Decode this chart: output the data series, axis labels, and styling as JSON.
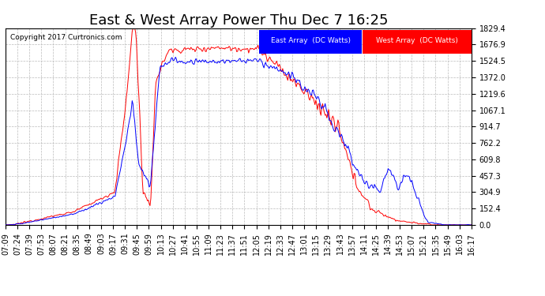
{
  "title": "East & West Array Power Thu Dec 7 16:25",
  "copyright": "Copyright 2017 Curtronics.com",
  "legend_east": "East Array  (DC Watts)",
  "legend_west": "West Array  (DC Watts)",
  "east_color": "#0000ff",
  "west_color": "#ff0000",
  "ytick_labels": [
    "0.0",
    "152.4",
    "304.9",
    "457.3",
    "609.8",
    "762.2",
    "914.7",
    "1067.1",
    "1219.6",
    "1372.0",
    "1524.5",
    "1676.9",
    "1829.4"
  ],
  "ytick_values": [
    0.0,
    152.4,
    304.9,
    457.3,
    609.8,
    762.2,
    914.7,
    1067.1,
    1219.6,
    1372.0,
    1524.5,
    1676.9,
    1829.4
  ],
  "ymax": 1829.4,
  "ymin": 0.0,
  "background_color": "#ffffff",
  "plot_bg_color": "#ffffff",
  "grid_color": "#bbbbbb",
  "title_fontsize": 13,
  "tick_fontsize": 7,
  "x_labels": [
    "07:09",
    "07:24",
    "07:39",
    "07:53",
    "08:07",
    "08:21",
    "08:35",
    "08:49",
    "09:03",
    "09:17",
    "09:31",
    "09:45",
    "09:59",
    "10:13",
    "10:27",
    "10:41",
    "10:55",
    "11:09",
    "11:23",
    "11:37",
    "11:51",
    "12:05",
    "12:19",
    "12:33",
    "12:47",
    "13:01",
    "13:15",
    "13:29",
    "13:43",
    "13:57",
    "14:11",
    "14:25",
    "14:39",
    "14:53",
    "15:07",
    "15:21",
    "15:35",
    "15:49",
    "16:03",
    "16:17"
  ]
}
